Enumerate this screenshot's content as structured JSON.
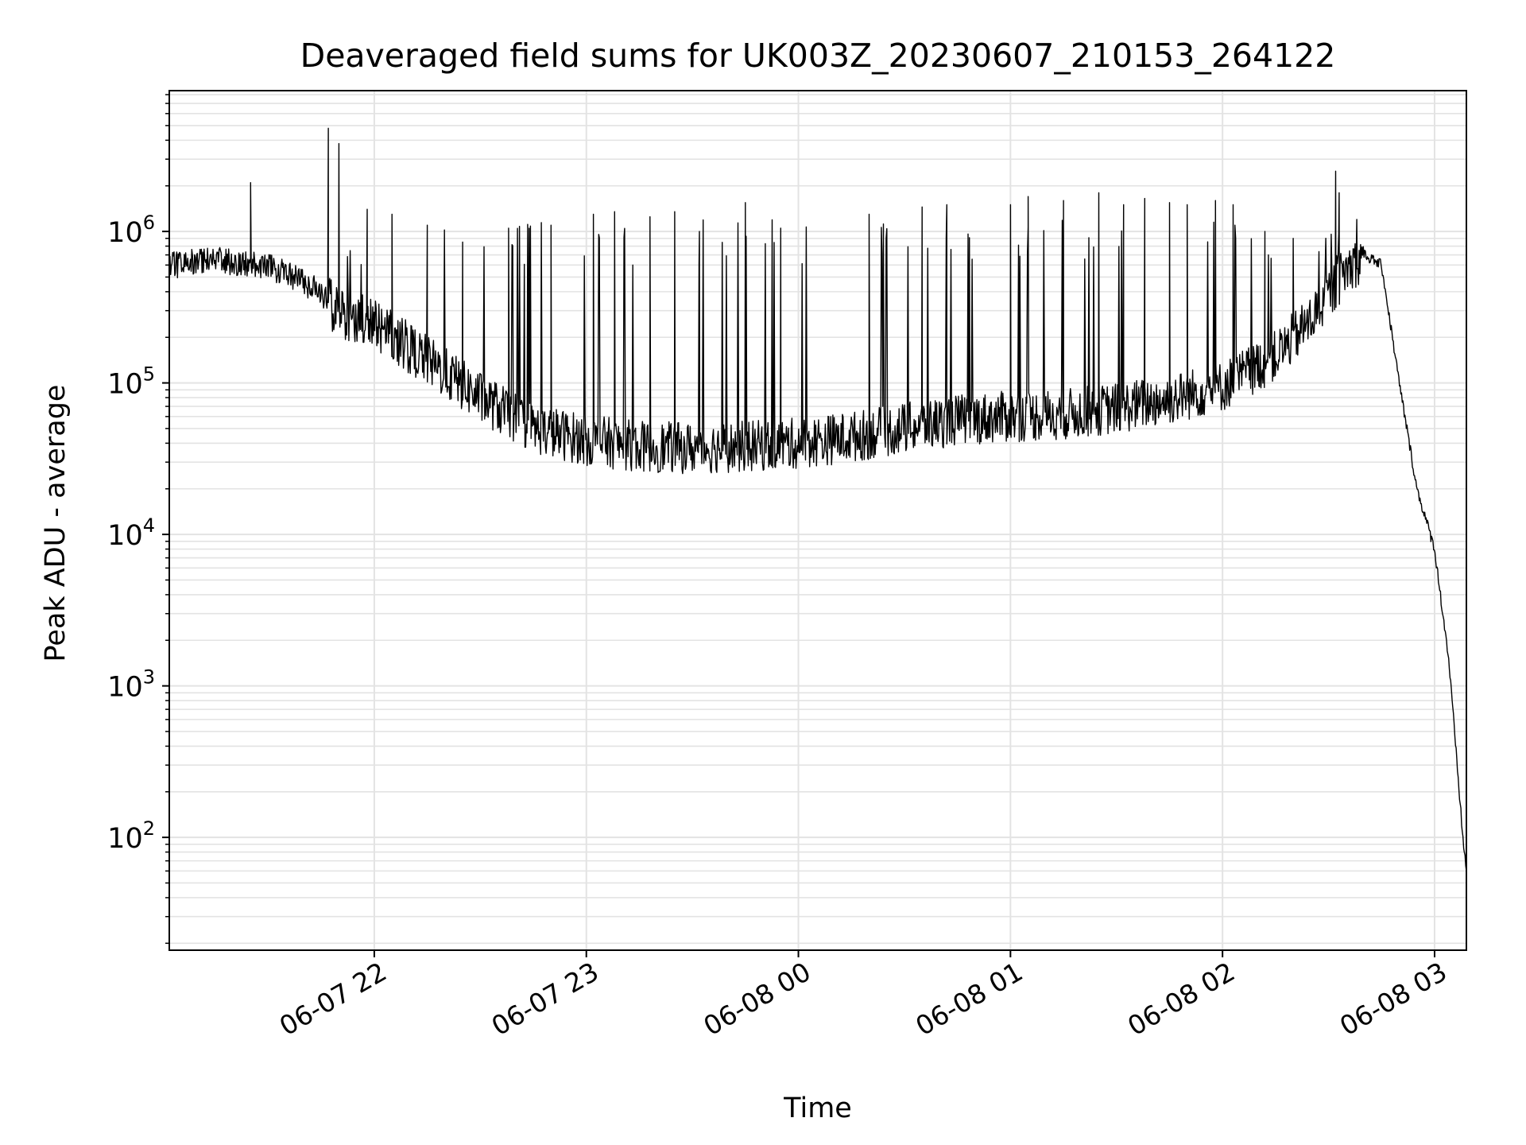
{
  "chart_data": {
    "type": "line",
    "title": "Deaveraged field sums for UK003Z_20230607_210153_264122",
    "xlabel": "Time",
    "ylabel": "Peak ADU - average",
    "x_scale": "time",
    "y_scale": "log",
    "xlim": [
      "2023-06-07T21:02",
      "2023-06-08T03:09"
    ],
    "ylim": [
      18,
      8500000
    ],
    "grid": true,
    "x_tick_labels": [
      "06-07 22",
      "06-07 23",
      "06-08 00",
      "06-08 01",
      "06-08 02",
      "06-08 03"
    ],
    "x_tick_values": [
      "2023-06-07T22:00",
      "2023-06-07T23:00",
      "2023-06-08T00:00",
      "2023-06-08T01:00",
      "2023-06-08T02:00",
      "2023-06-08T03:00"
    ],
    "y_tick_labels": [
      {
        "base": "10",
        "exp": "2"
      },
      {
        "base": "10",
        "exp": "3"
      },
      {
        "base": "10",
        "exp": "4"
      },
      {
        "base": "10",
        "exp": "5"
      },
      {
        "base": "10",
        "exp": "6"
      }
    ],
    "y_tick_values": [
      100,
      1000,
      10000,
      100000,
      1000000
    ],
    "series": [
      {
        "color": "#000000",
        "baseline": {
          "x": [
            "2023-06-07T21:02",
            "2023-06-07T21:15",
            "2023-06-07T21:30",
            "2023-06-07T21:45",
            "2023-06-07T21:50",
            "2023-06-07T22:00",
            "2023-06-07T22:15",
            "2023-06-07T22:30",
            "2023-06-07T22:45",
            "2023-06-07T23:00",
            "2023-06-07T23:15",
            "2023-06-07T23:30",
            "2023-06-07T23:45",
            "2023-06-08T00:00",
            "2023-06-08T00:15",
            "2023-06-08T00:30",
            "2023-06-08T00:45",
            "2023-06-08T01:00",
            "2023-06-08T01:15",
            "2023-06-08T01:30",
            "2023-06-08T01:45",
            "2023-06-08T02:00",
            "2023-06-08T02:15",
            "2023-06-08T02:25",
            "2023-06-08T02:35",
            "2023-06-08T02:40",
            "2023-06-08T02:45",
            "2023-06-08T02:50",
            "2023-06-08T02:55",
            "2023-06-08T03:00",
            "2023-06-08T03:04",
            "2023-06-08T03:08",
            "2023-06-08T03:09"
          ],
          "y": [
            600000,
            650000,
            600000,
            400000,
            280000,
            250000,
            140000,
            80000,
            50000,
            42000,
            38000,
            37000,
            38000,
            40000,
            44000,
            50000,
            57000,
            60000,
            62000,
            68000,
            78000,
            95000,
            150000,
            260000,
            560000,
            700000,
            600000,
            100000,
            20000,
            8000,
            1500,
            100,
            60
          ]
        },
        "spikes": [
          {
            "x": "2023-06-07T21:25",
            "y": 2100000
          },
          {
            "x": "2023-06-07T21:47",
            "y": 4800000
          },
          {
            "x": "2023-06-07T21:50",
            "y": 3800000
          },
          {
            "x": "2023-06-07T21:58",
            "y": 1400000
          },
          {
            "x": "2023-06-07T22:05",
            "y": 1300000
          },
          {
            "x": "2023-06-07T22:15",
            "y": 1100000
          },
          {
            "x": "2023-06-07T22:25",
            "y": 850000
          },
          {
            "x": "2023-06-07T22:38",
            "y": 1050000
          },
          {
            "x": "2023-06-07T22:50",
            "y": 1100000
          },
          {
            "x": "2023-06-07T23:02",
            "y": 1300000
          },
          {
            "x": "2023-06-07T23:08",
            "y": 1350000
          },
          {
            "x": "2023-06-07T23:18",
            "y": 1250000
          },
          {
            "x": "2023-06-07T23:25",
            "y": 1350000
          },
          {
            "x": "2023-06-07T23:32",
            "y": 1000000
          },
          {
            "x": "2023-06-07T23:45",
            "y": 1550000
          },
          {
            "x": "2023-06-07T23:55",
            "y": 1050000
          },
          {
            "x": "2023-06-08T00:20",
            "y": 1300000
          },
          {
            "x": "2023-06-08T00:35",
            "y": 1450000
          },
          {
            "x": "2023-06-08T00:42",
            "y": 1500000
          },
          {
            "x": "2023-06-08T01:00",
            "y": 1500000
          },
          {
            "x": "2023-06-08T01:05",
            "y": 1700000
          },
          {
            "x": "2023-06-08T01:15",
            "y": 1600000
          },
          {
            "x": "2023-06-08T01:25",
            "y": 1800000
          },
          {
            "x": "2023-06-08T01:32",
            "y": 1500000
          },
          {
            "x": "2023-06-08T01:38",
            "y": 1650000
          },
          {
            "x": "2023-06-08T01:45",
            "y": 1550000
          },
          {
            "x": "2023-06-08T01:50",
            "y": 1500000
          },
          {
            "x": "2023-06-08T01:58",
            "y": 1600000
          },
          {
            "x": "2023-06-08T02:03",
            "y": 1500000
          },
          {
            "x": "2023-06-08T02:12",
            "y": 1000000
          },
          {
            "x": "2023-06-08T02:20",
            "y": 900000
          },
          {
            "x": "2023-06-08T02:32",
            "y": 2500000
          },
          {
            "x": "2023-06-08T02:33",
            "y": 1800000
          },
          {
            "x": "2023-06-08T02:38",
            "y": 1200000
          }
        ]
      }
    ]
  }
}
